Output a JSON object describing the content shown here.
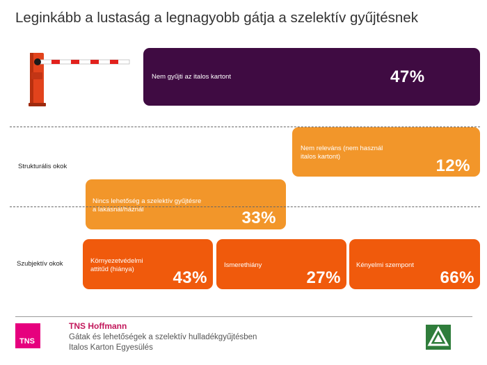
{
  "title": "Leginkább a lustaság a legnagyobb gátja a szelektív gyűjtésnek",
  "colors": {
    "purple": "#3f0b42",
    "orange_light": "#f2962a",
    "orange_dark": "#f05a0c"
  },
  "boxes": {
    "nem_gyujti": {
      "label": "Nem gyűjti az italos kartont",
      "value": "47%"
    },
    "nem_relevans": {
      "label": "Nem releváns (nem használ italos kartont)",
      "value": "12%"
    },
    "nincs_lehetoseg": {
      "label": "Nincs lehetőség a szelektív gyűjtésre a lakásnál/háznál",
      "value": "33%"
    },
    "kornyezetvedelmi": {
      "label": "Környezetvédelmi attitűd (hiánya)",
      "value": "43%"
    },
    "ismerethiany": {
      "label": "Ismerethiány",
      "value": "27%"
    },
    "kenyelmi": {
      "label": "Kényelmi szempont",
      "value": "66%"
    }
  },
  "sections": {
    "strukturalis": "Strukturális okok",
    "szubjektiv": "Szubjektív okok"
  },
  "footer": {
    "logo_text": "TNS",
    "brand": "TNS Hoffmann",
    "line1": "Gátak és lehetőségek a szelektív hulladékgyűjtésben",
    "line2": "Italos Karton Egyesülés"
  }
}
